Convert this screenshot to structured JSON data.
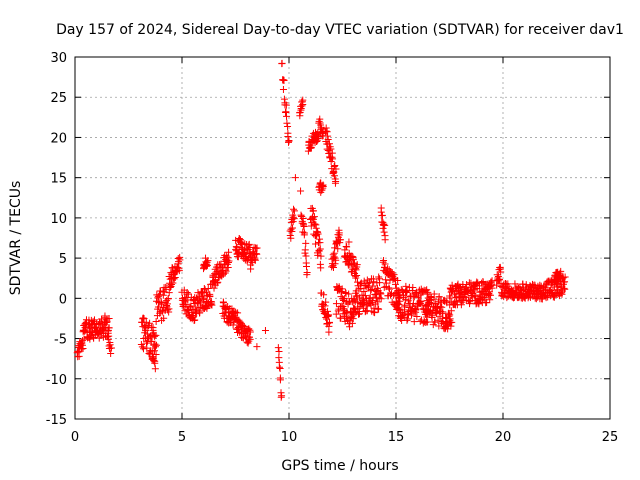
{
  "chart_data": {
    "type": "scatter",
    "title": "Day 157 of 2024, Sidereal Day-to-day VTEC variation (SDTVAR) for receiver dav1",
    "xlabel": "GPS time / hours",
    "ylabel": "SDTVAR / TECUs",
    "xlim": [
      0,
      25
    ],
    "ylim": [
      -15,
      30
    ],
    "xticks": [
      0,
      5,
      10,
      15,
      20,
      25
    ],
    "yticks": [
      -15,
      -10,
      -5,
      0,
      5,
      10,
      15,
      20,
      25,
      30
    ],
    "xtick_labels": [
      "0",
      "5",
      "10",
      "15",
      "20",
      "25"
    ],
    "ytick_labels": [
      "-15",
      "-10",
      "-5",
      "0",
      "5",
      "10",
      "15",
      "20",
      "25",
      "30"
    ],
    "grid": true,
    "marker": "+",
    "color": "#ff0000",
    "series": [
      {
        "name": "SDTVAR",
        "segments": [
          {
            "t0": 0.1,
            "t1": 0.4,
            "y0": -6.5,
            "y1": -5.0,
            "spread": 1.2
          },
          {
            "t0": 0.4,
            "t1": 1.6,
            "y0": -4.0,
            "y1": -3.5,
            "spread": 1.3
          },
          {
            "t0": 1.55,
            "t1": 1.7,
            "y0": -5.0,
            "y1": -6.5,
            "spread": 0.8
          },
          {
            "t0": 3.1,
            "t1": 3.8,
            "y0": -4.0,
            "y1": -6.0,
            "spread": 2.0
          },
          {
            "t0": 3.6,
            "t1": 3.75,
            "y0": -7.0,
            "y1": -8.5,
            "spread": 0.6
          },
          {
            "t0": 3.8,
            "t1": 4.4,
            "y0": -1.5,
            "y1": 0.0,
            "spread": 2.0
          },
          {
            "t0": 4.4,
            "t1": 4.9,
            "y0": 2.0,
            "y1": 4.0,
            "spread": 1.3
          },
          {
            "t0": 5.0,
            "t1": 5.6,
            "y0": 0.0,
            "y1": -1.5,
            "spread": 1.5
          },
          {
            "t0": 5.6,
            "t1": 6.4,
            "y0": -1.0,
            "y1": 0.5,
            "spread": 1.5
          },
          {
            "t0": 6.0,
            "t1": 6.2,
            "y0": 4.0,
            "y1": 4.5,
            "spread": 0.6
          },
          {
            "t0": 6.4,
            "t1": 7.2,
            "y0": 2.0,
            "y1": 5.0,
            "spread": 1.2
          },
          {
            "t0": 6.9,
            "t1": 7.6,
            "y0": -1.5,
            "y1": -3.0,
            "spread": 1.2
          },
          {
            "t0": 7.5,
            "t1": 8.2,
            "y0": 6.5,
            "y1": 5.5,
            "spread": 1.2
          },
          {
            "t0": 7.6,
            "t1": 8.2,
            "y0": -3.5,
            "y1": -5.0,
            "spread": 1.0
          },
          {
            "t0": 8.2,
            "t1": 8.5,
            "y0": 4.0,
            "y1": 6.5,
            "spread": 1.2
          },
          {
            "t0": 9.5,
            "t1": 9.65,
            "y0": -6.0,
            "y1": -12.5,
            "spread": 0.8
          },
          {
            "t0": 9.65,
            "t1": 10.0,
            "y0": 29.5,
            "y1": 19.5,
            "spread": 1.2
          },
          {
            "t0": 10.05,
            "t1": 10.25,
            "y0": 8.0,
            "y1": 10.5,
            "spread": 1.0
          },
          {
            "t0": 10.5,
            "t1": 10.65,
            "y0": 23.0,
            "y1": 24.5,
            "spread": 0.6
          },
          {
            "t0": 10.55,
            "t1": 10.85,
            "y0": 12.0,
            "y1": 4.0,
            "spread": 1.5
          },
          {
            "t0": 10.9,
            "t1": 11.4,
            "y0": 19.0,
            "y1": 20.5,
            "spread": 0.8
          },
          {
            "t0": 11.0,
            "t1": 11.5,
            "y0": 11.0,
            "y1": 5.0,
            "spread": 1.5
          },
          {
            "t0": 11.4,
            "t1": 11.6,
            "y0": 22.0,
            "y1": 20.0,
            "spread": 0.8
          },
          {
            "t0": 11.4,
            "t1": 11.6,
            "y0": 14.0,
            "y1": 13.5,
            "spread": 0.6
          },
          {
            "t0": 11.5,
            "t1": 11.9,
            "y0": 0.5,
            "y1": -3.5,
            "spread": 1.2
          },
          {
            "t0": 11.7,
            "t1": 12.2,
            "y0": 20.5,
            "y1": 15.0,
            "spread": 1.2
          },
          {
            "t0": 12.0,
            "t1": 12.4,
            "y0": 4.0,
            "y1": 8.0,
            "spread": 1.2
          },
          {
            "t0": 12.2,
            "t1": 13.0,
            "y0": 0.0,
            "y1": -2.0,
            "spread": 2.0
          },
          {
            "t0": 12.6,
            "t1": 13.2,
            "y0": 6.0,
            "y1": 3.0,
            "spread": 1.2
          },
          {
            "t0": 13.0,
            "t1": 14.3,
            "y0": 0.0,
            "y1": 0.5,
            "spread": 2.2
          },
          {
            "t0": 14.3,
            "t1": 14.5,
            "y0": 10.5,
            "y1": 8.0,
            "spread": 0.8
          },
          {
            "t0": 14.4,
            "t1": 15.2,
            "y0": 3.0,
            "y1": 0.0,
            "spread": 2.0
          },
          {
            "t0": 15.0,
            "t1": 16.5,
            "y0": -0.5,
            "y1": -1.0,
            "spread": 2.2
          },
          {
            "t0": 16.4,
            "t1": 17.4,
            "y0": -1.0,
            "y1": -2.0,
            "spread": 2.0
          },
          {
            "t0": 17.3,
            "t1": 17.6,
            "y0": -3.0,
            "y1": -2.5,
            "spread": 1.0
          },
          {
            "t0": 17.5,
            "t1": 19.5,
            "y0": 0.5,
            "y1": 0.8,
            "spread": 1.4
          },
          {
            "t0": 19.7,
            "t1": 19.9,
            "y0": 2.0,
            "y1": 3.5,
            "spread": 0.8
          },
          {
            "t0": 19.9,
            "t1": 22.0,
            "y0": 1.0,
            "y1": 0.8,
            "spread": 0.9
          },
          {
            "t0": 22.0,
            "t1": 22.9,
            "y0": 1.0,
            "y1": 1.5,
            "spread": 1.3
          },
          {
            "t0": 22.4,
            "t1": 22.7,
            "y0": 2.5,
            "y1": 3.0,
            "spread": 0.6
          }
        ],
        "isolated_points": [
          {
            "x": 8.5,
            "y": -6.0
          },
          {
            "x": 8.9,
            "y": -4.0
          },
          {
            "x": 6.1,
            "y": 5.0
          },
          {
            "x": 10.3,
            "y": 15.0
          },
          {
            "x": 12.8,
            "y": 7.0
          },
          {
            "x": 14.9,
            "y": 2.5
          },
          {
            "x": 19.2,
            "y": 1.5
          },
          {
            "x": 1.4,
            "y": -2.2
          }
        ]
      }
    ]
  }
}
